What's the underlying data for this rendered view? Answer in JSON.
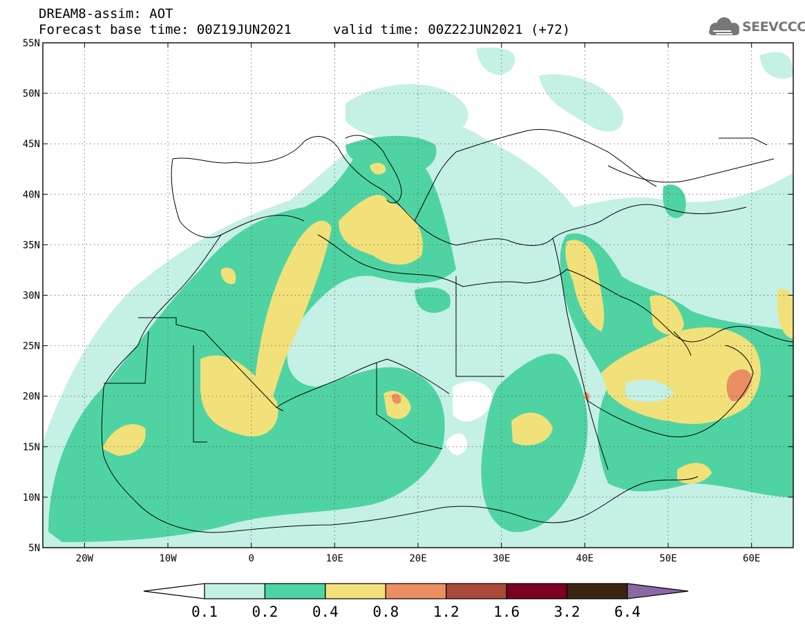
{
  "header": {
    "line1": "DREAM8-assim: AOT",
    "line2": "Forecast base time: 00Z19JUN2021",
    "valid": "valid time: 00Z22JUN2021 (+72)"
  },
  "logo": {
    "text": "SEEVCCC",
    "icon": "cloud-icon"
  },
  "map": {
    "lon_range": [
      -25,
      65
    ],
    "lat_range": [
      5,
      55
    ],
    "lat_ticks": [
      {
        "value": 55,
        "label": "55N"
      },
      {
        "value": 50,
        "label": "50N"
      },
      {
        "value": 45,
        "label": "45N"
      },
      {
        "value": 40,
        "label": "40N"
      },
      {
        "value": 35,
        "label": "35N"
      },
      {
        "value": 30,
        "label": "30N"
      },
      {
        "value": 25,
        "label": "25N"
      },
      {
        "value": 20,
        "label": "20N"
      },
      {
        "value": 15,
        "label": "15N"
      },
      {
        "value": 10,
        "label": "10N"
      },
      {
        "value": 5,
        "label": "5N"
      }
    ],
    "lon_ticks": [
      {
        "value": -20,
        "label": "20W"
      },
      {
        "value": -10,
        "label": "10W"
      },
      {
        "value": 0,
        "label": "0"
      },
      {
        "value": 10,
        "label": "10E"
      },
      {
        "value": 20,
        "label": "20E"
      },
      {
        "value": 30,
        "label": "30E"
      },
      {
        "value": 40,
        "label": "40E"
      },
      {
        "value": 50,
        "label": "50E"
      },
      {
        "value": 60,
        "label": "60E"
      }
    ],
    "grid": true
  },
  "colorbar": {
    "labels": [
      "0.1",
      "0.2",
      "0.4",
      "0.8",
      "1.2",
      "1.6",
      "3.2",
      "6.4"
    ],
    "colors": [
      "#ffffff",
      "#c4f0e6",
      "#4fd3a3",
      "#f2e17a",
      "#ec8e64",
      "#a9493a",
      "#7b0021",
      "#3e2413",
      "#8a68a6"
    ]
  }
}
